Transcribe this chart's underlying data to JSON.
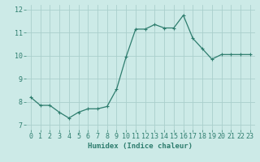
{
  "x": [
    0,
    1,
    2,
    3,
    4,
    5,
    6,
    7,
    8,
    9,
    10,
    11,
    12,
    13,
    14,
    15,
    16,
    17,
    18,
    19,
    20,
    21,
    22,
    23
  ],
  "y": [
    8.2,
    7.85,
    7.85,
    7.55,
    7.3,
    7.55,
    7.7,
    7.7,
    7.8,
    8.55,
    9.95,
    11.15,
    11.15,
    11.35,
    11.2,
    11.2,
    11.75,
    10.75,
    10.3,
    9.85,
    10.05,
    10.05,
    10.05,
    10.05
  ],
  "line_color": "#2e7d6e",
  "marker": "+",
  "bg_color": "#cceae7",
  "grid_color": "#aacfcc",
  "xlabel": "Humidex (Indice chaleur)",
  "ylim": [
    6.8,
    12.2
  ],
  "xlim": [
    -0.5,
    23.5
  ],
  "yticks": [
    7,
    8,
    9,
    10,
    11,
    12
  ],
  "xticks": [
    0,
    1,
    2,
    3,
    4,
    5,
    6,
    7,
    8,
    9,
    10,
    11,
    12,
    13,
    14,
    15,
    16,
    17,
    18,
    19,
    20,
    21,
    22,
    23
  ],
  "xlabel_fontsize": 6.5,
  "tick_fontsize": 6.0,
  "line_width": 0.9,
  "marker_size": 3.5
}
